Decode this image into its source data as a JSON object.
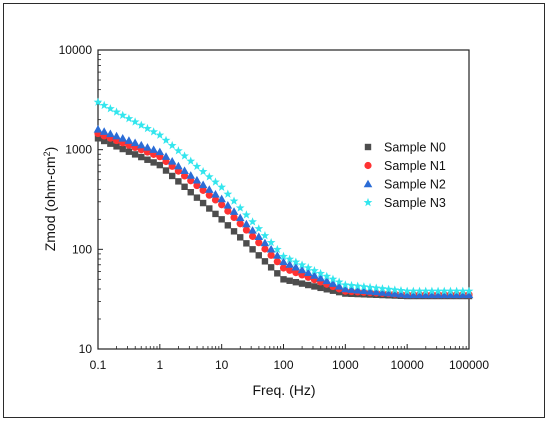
{
  "chart_data": {
    "type": "scatter",
    "xlabel": "Freq. (Hz)",
    "ylabel_main": "Zmod (ohm-cm",
    "ylabel_sup": "2",
    "ylabel_close": ")",
    "x_scale": "log",
    "y_scale": "log",
    "xlim": [
      0.1,
      100000
    ],
    "ylim": [
      10,
      10000
    ],
    "x_ticks": [
      "0.1",
      "1",
      "10",
      "100",
      "1000",
      "10000",
      "100000"
    ],
    "y_ticks": [
      "10",
      "100",
      "1000",
      "10000"
    ],
    "grid": false,
    "legend_position": "right",
    "series": [
      {
        "name": "Sample N0",
        "marker": "square",
        "color": "#4d4d4d",
        "x": [
          0.1,
          1,
          10,
          100,
          1000,
          10000,
          100000
        ],
        "y": [
          1300,
          700,
          200,
          50,
          36,
          34,
          34
        ]
      },
      {
        "name": "Sample N1",
        "marker": "circle",
        "color": "#ff3333",
        "x": [
          0.1,
          1,
          10,
          100,
          1000,
          10000,
          100000
        ],
        "y": [
          1450,
          850,
          280,
          65,
          38,
          35,
          35
        ]
      },
      {
        "name": "Sample N2",
        "marker": "triangle",
        "color": "#2b6cd6",
        "x": [
          0.1,
          1,
          10,
          100,
          1000,
          10000,
          100000
        ],
        "y": [
          1600,
          950,
          320,
          75,
          40,
          35,
          35
        ]
      },
      {
        "name": "Sample N3",
        "marker": "star",
        "color": "#33e6ee",
        "x": [
          0.1,
          1,
          10,
          100,
          1000,
          10000,
          100000
        ],
        "y": [
          3000,
          1400,
          420,
          85,
          44,
          38,
          38
        ]
      }
    ]
  }
}
